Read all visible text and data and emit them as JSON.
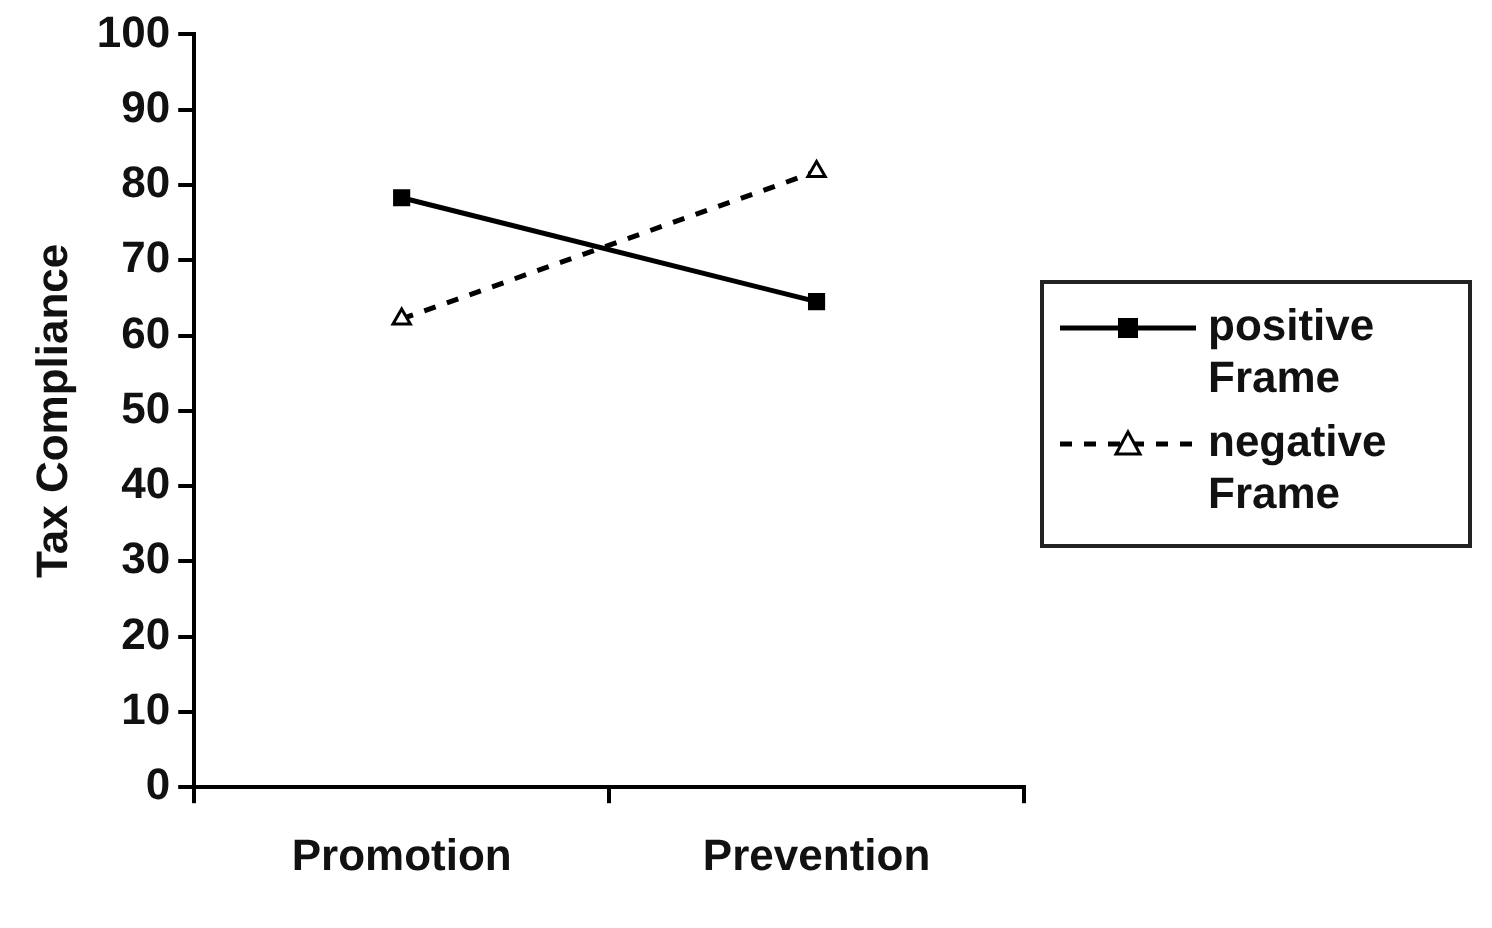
{
  "chart_data": {
    "type": "line",
    "ylabel": "Tax Compliance",
    "categories": [
      "Promotion",
      "Prevention"
    ],
    "series": [
      {
        "name": "positive Frame",
        "color": "#000000",
        "values": [
          78.3,
          64.5
        ],
        "marker": "square",
        "line_style": "solid"
      },
      {
        "name": "negative Frame",
        "color": "#000000",
        "values": [
          62.2,
          81.8
        ],
        "marker": "triangle",
        "line_style": "dashed"
      }
    ],
    "ylim": [
      0,
      100
    ],
    "yticks": [
      0,
      10,
      20,
      30,
      40,
      50,
      60,
      70,
      80,
      90,
      100
    ],
    "grid": false,
    "legend": "right"
  }
}
